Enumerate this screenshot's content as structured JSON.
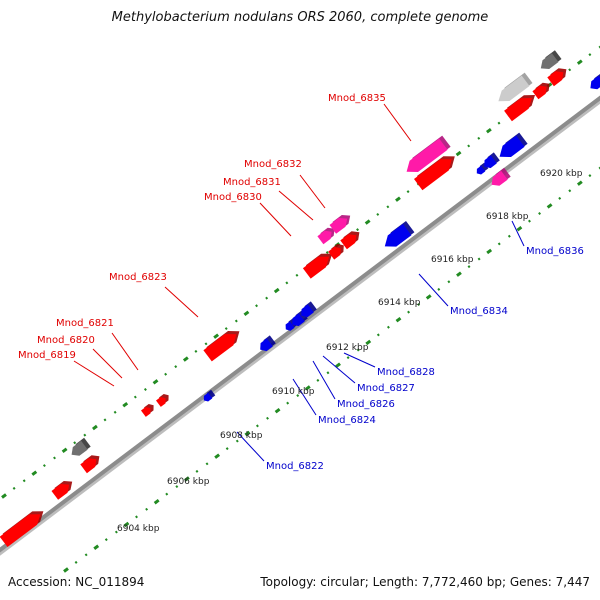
{
  "title": "Methylobacterium nodulans ORS 2060, complete genome",
  "footer": {
    "accession_label": "Accession:",
    "accession": "NC_011894",
    "topology_label": "Topology:",
    "topology": "circular",
    "length_label": "Length:",
    "length": "7,772,460 bp",
    "genes_label": "Genes:",
    "genes": "7,447"
  },
  "colors": {
    "red": "#ff0000",
    "pink": "#ff1aa8",
    "blue": "#0000ee",
    "gray": "#707070",
    "light_gray": "#cccccc",
    "tick": "#228B22",
    "backbone": "#8c8c8c"
  },
  "ticks": [
    "6904 kbp",
    "6906 kbp",
    "6908 kbp",
    "6910 kbp",
    "6912 kbp",
    "6914 kbp",
    "6916 kbp",
    "6918 kbp",
    "6920 kbp"
  ],
  "upper_labels": [
    "Mnod_6835",
    "Mnod_6832",
    "Mnod_6831",
    "Mnod_6830",
    "Mnod_6823",
    "Mnod_6821",
    "Mnod_6820",
    "Mnod_6819"
  ],
  "lower_labels": [
    "Mnod_6836",
    "Mnod_6834",
    "Mnod_6828",
    "Mnod_6827",
    "Mnod_6826",
    "Mnod_6824",
    "Mnod_6822"
  ]
}
